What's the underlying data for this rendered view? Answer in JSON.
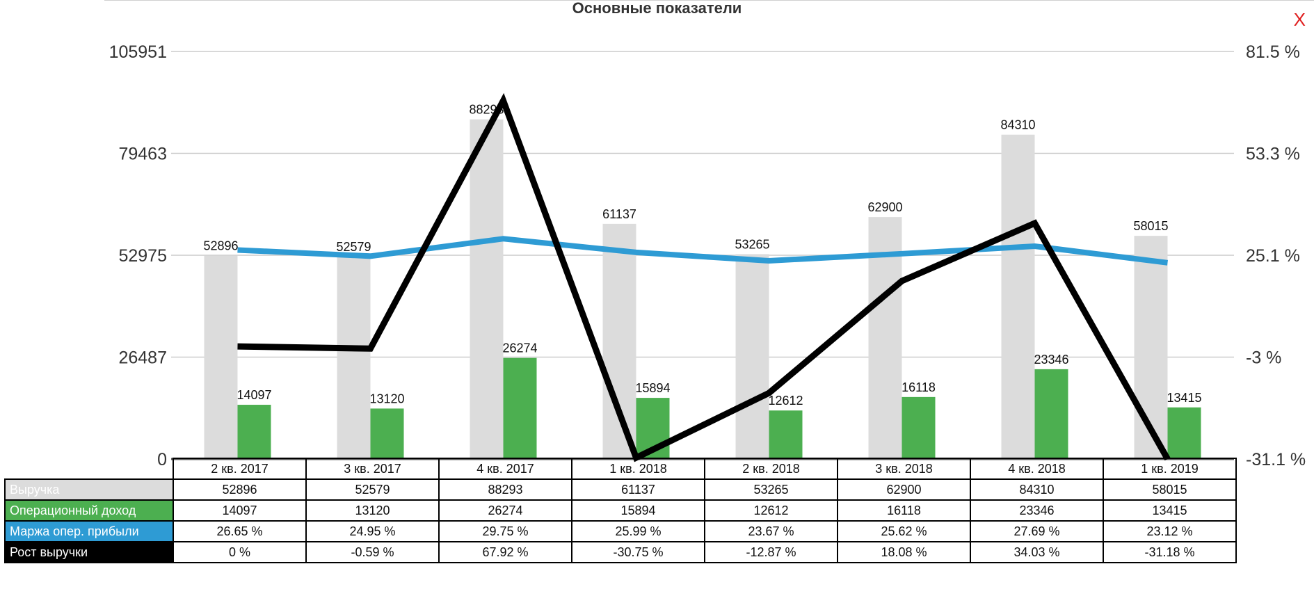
{
  "chart_data": {
    "type": "bar",
    "title": "Основные показатели",
    "categories": [
      "2 кв. 2017",
      "3 кв. 2017",
      "4 кв. 2017",
      "1 кв. 2018",
      "2 кв. 2018",
      "3 кв. 2018",
      "4 кв. 2018",
      "1 кв. 2019"
    ],
    "left_axis": {
      "ylim": [
        0,
        105951
      ],
      "ticks": [
        "105951",
        "79463",
        "52975",
        "26487",
        "0"
      ]
    },
    "right_axis": {
      "ylim": [
        -31.1,
        81.5
      ],
      "ticks": [
        "81.5 %",
        "53.3 %",
        "25.1 %",
        "-3 %",
        "-31.1 %"
      ]
    },
    "grid": true,
    "series": [
      {
        "name": "Выручка",
        "type": "bar",
        "axis": "left",
        "color": "#dcdcdc",
        "values": [
          52896,
          52579,
          88293,
          61137,
          53265,
          62900,
          84310,
          58015
        ],
        "labels": [
          "52896",
          "52579",
          "88293",
          "61137",
          "53265",
          "62900",
          "84310",
          "58015"
        ]
      },
      {
        "name": "Операционный доход",
        "type": "bar",
        "axis": "left",
        "color": "#4caf50",
        "values": [
          14097,
          13120,
          26274,
          15894,
          12612,
          16118,
          23346,
          13415
        ],
        "labels": [
          "14097",
          "13120",
          "26274",
          "15894",
          "12612",
          "16118",
          "23346",
          "13415"
        ]
      },
      {
        "name": "Маржа опер. прибыли",
        "type": "line",
        "axis": "right",
        "color": "#2e9bd4",
        "values": [
          26.65,
          24.95,
          29.75,
          25.99,
          23.67,
          25.62,
          27.69,
          23.12
        ],
        "labels": [
          "26.65 %",
          "24.95 %",
          "29.75 %",
          "25.99 %",
          "23.67 %",
          "25.62 %",
          "27.69 %",
          "23.12 %"
        ]
      },
      {
        "name": "Рост выручки",
        "type": "line",
        "axis": "right",
        "color": "#000000",
        "values": [
          0,
          -0.59,
          67.92,
          -30.75,
          -12.87,
          18.08,
          34.03,
          -31.18
        ],
        "labels": [
          "0 %",
          "-0.59 %",
          "67.92 %",
          "-30.75 %",
          "-12.87 %",
          "18.08 %",
          "34.03 %",
          "-31.18 %"
        ]
      }
    ]
  },
  "close_label": "X"
}
